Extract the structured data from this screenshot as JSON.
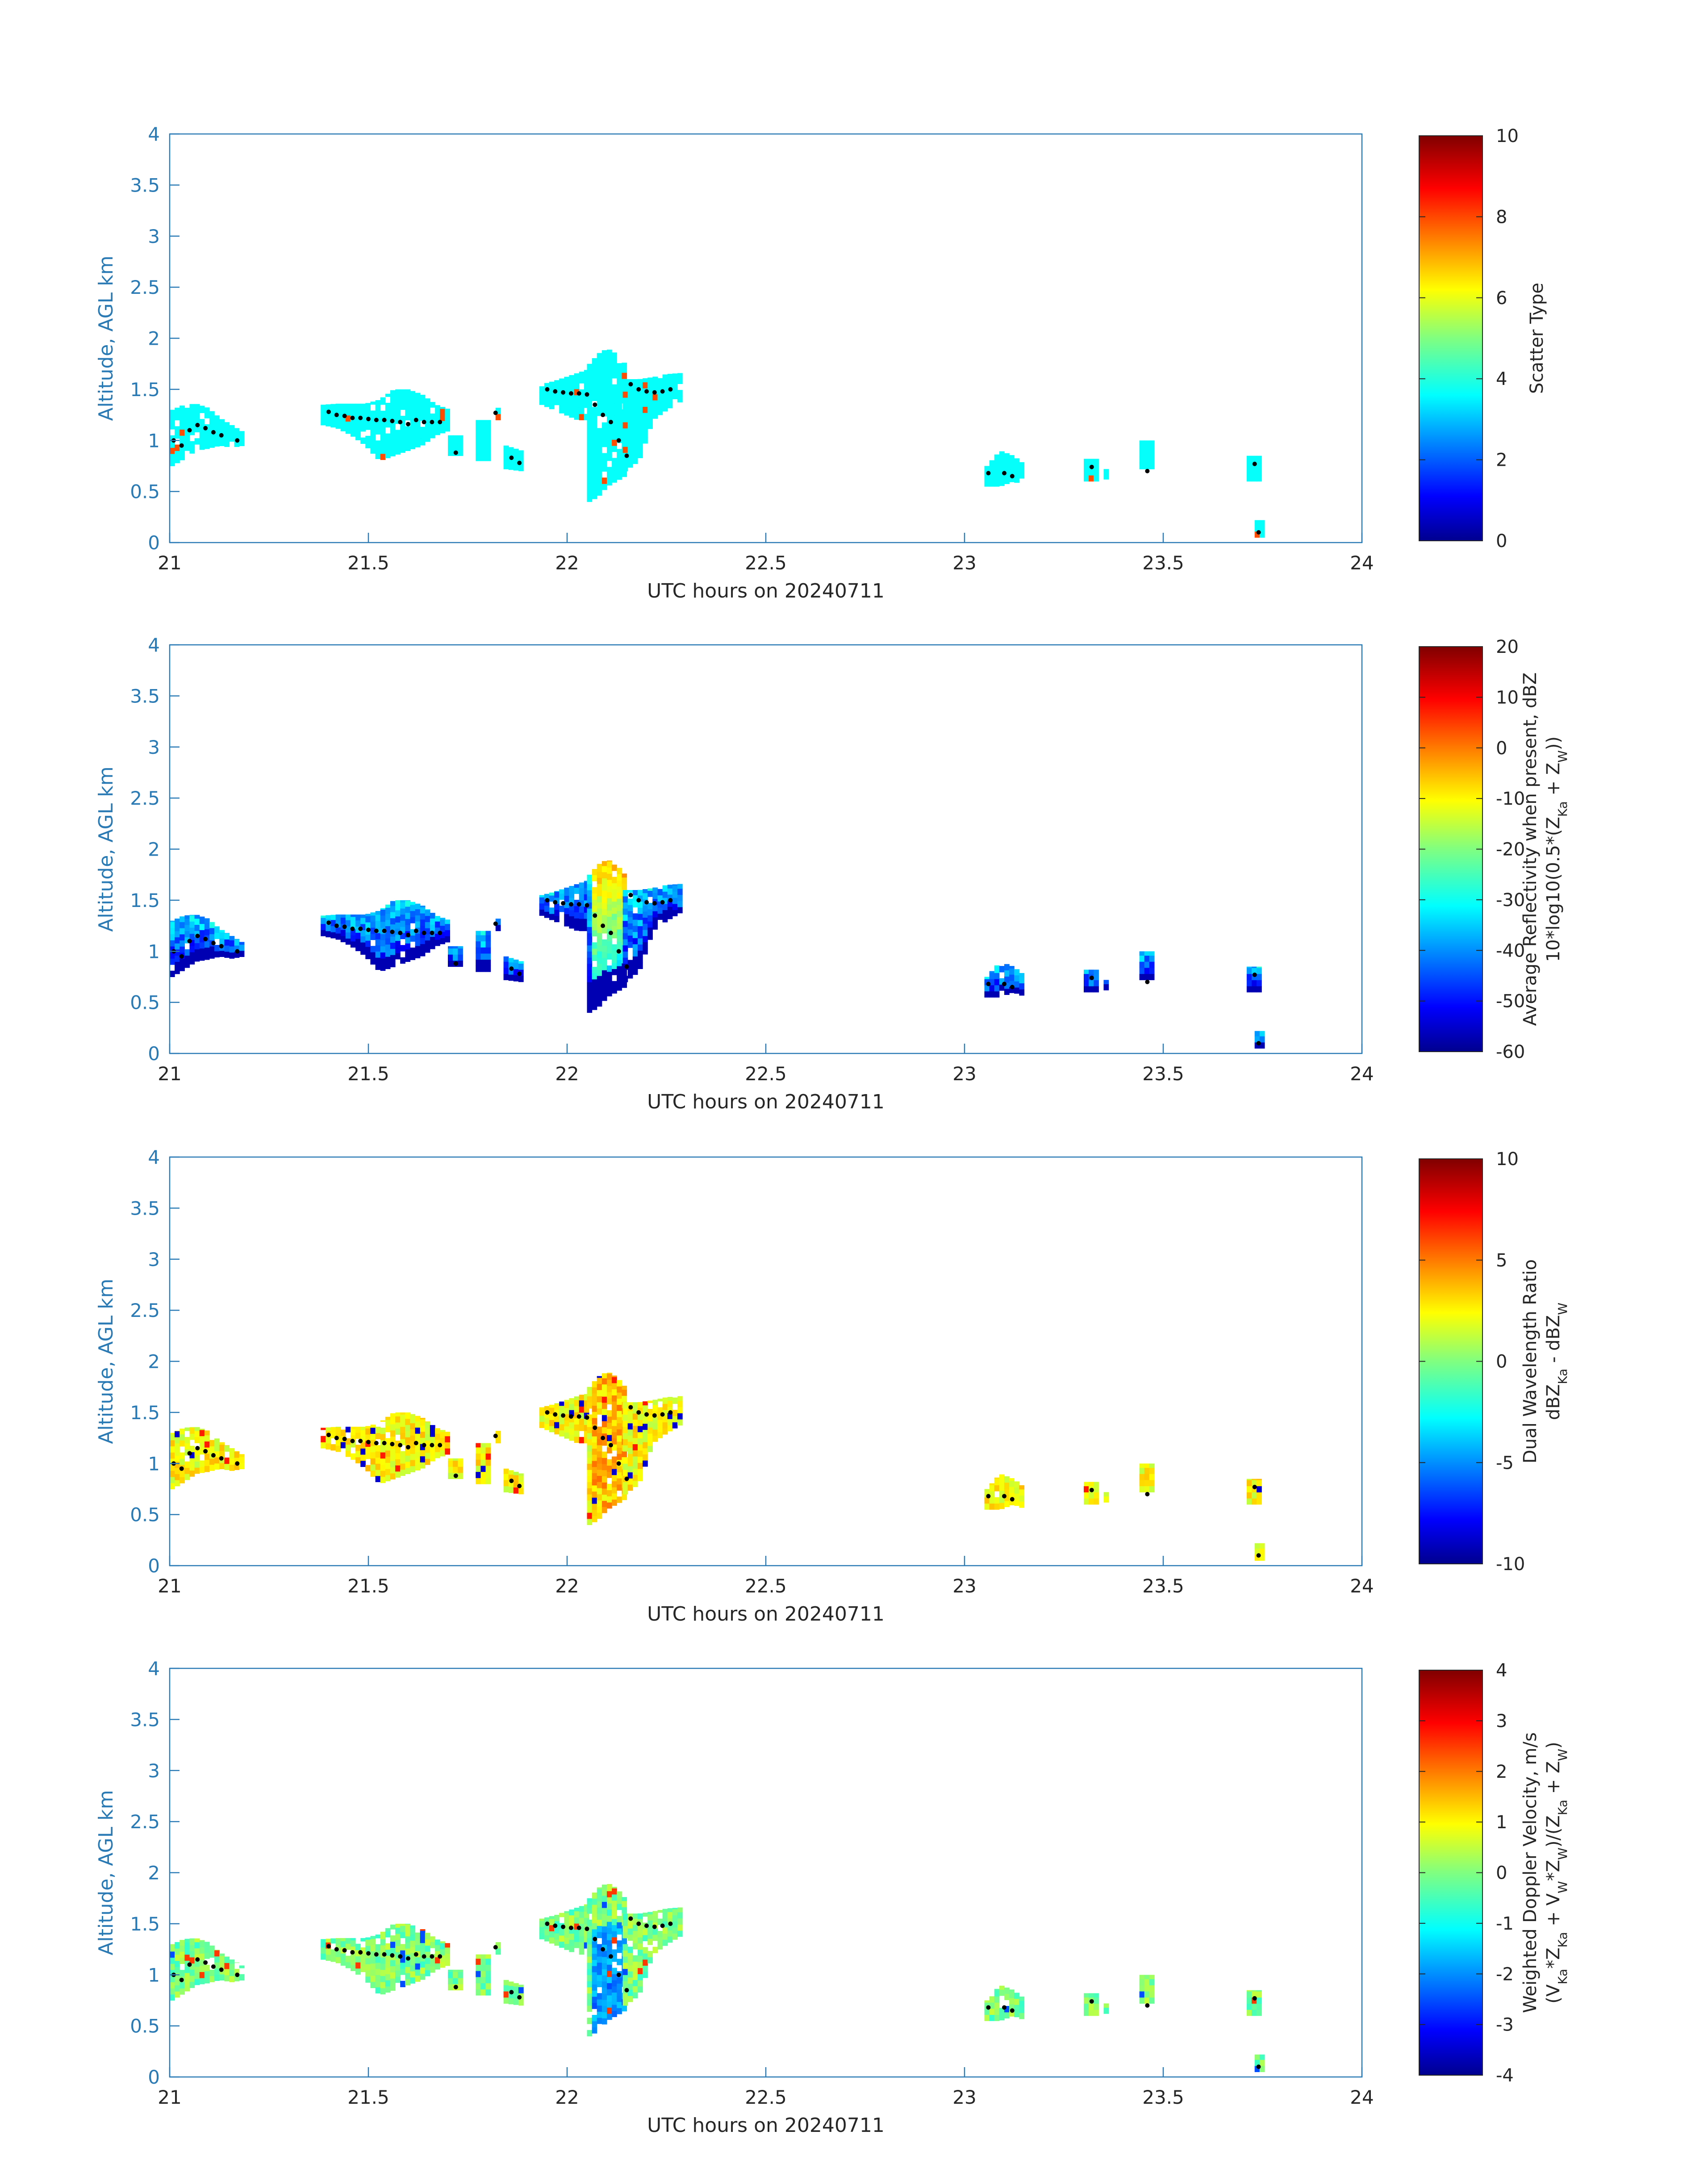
{
  "colors": {
    "axis": "#2a7bb5",
    "text": "#262626",
    "dot": "#000000"
  },
  "chart_data": [
    {
      "type": "heatmap",
      "xlabel": "UTC hours on 20240711",
      "ylabel": "Altitude, AGL km",
      "xlim": [
        21,
        24
      ],
      "ylim": [
        0,
        4
      ],
      "xticks": [
        "21",
        "21.5",
        "22",
        "22.5",
        "23",
        "23.5",
        "24"
      ],
      "yticks": [
        "0",
        "0.5",
        "1",
        "1.5",
        "2",
        "2.5",
        "3",
        "3.5",
        "4"
      ],
      "colorbar": {
        "label": "Scatter Type",
        "label2": "",
        "range": [
          0,
          10
        ],
        "ticks": [
          "0",
          "2",
          "4",
          "6",
          "8",
          "10"
        ]
      },
      "colormap": "jet"
    },
    {
      "type": "heatmap",
      "xlabel": "UTC hours on 20240711",
      "ylabel": "Altitude, AGL km",
      "xlim": [
        21,
        24
      ],
      "ylim": [
        0,
        4
      ],
      "xticks": [
        "21",
        "21.5",
        "22",
        "22.5",
        "23",
        "23.5",
        "24"
      ],
      "yticks": [
        "0",
        "0.5",
        "1",
        "1.5",
        "2",
        "2.5",
        "3",
        "3.5",
        "4"
      ],
      "colorbar": {
        "label": "Average Reflectivity when present, dBZ",
        "label2": "10*log10(0.5*(Z_Ka + Z_W))",
        "range": [
          -60,
          20
        ],
        "ticks": [
          "-60",
          "-50",
          "-40",
          "-30",
          "-20",
          "-10",
          "0",
          "10",
          "20"
        ]
      },
      "colormap": "jet"
    },
    {
      "type": "heatmap",
      "xlabel": "UTC hours on 20240711",
      "ylabel": "Altitude, AGL km",
      "xlim": [
        21,
        24
      ],
      "ylim": [
        0,
        4
      ],
      "xticks": [
        "21",
        "21.5",
        "22",
        "22.5",
        "23",
        "23.5",
        "24"
      ],
      "yticks": [
        "0",
        "0.5",
        "1",
        "1.5",
        "2",
        "2.5",
        "3",
        "3.5",
        "4"
      ],
      "colorbar": {
        "label": "Dual Wavelength Ratio",
        "label2": "dBZ_Ka - dBZ_W",
        "range": [
          -10,
          10
        ],
        "ticks": [
          "-10",
          "-5",
          "0",
          "5",
          "10"
        ]
      },
      "colormap": "jet"
    },
    {
      "type": "heatmap",
      "xlabel": "UTC hours on 20240711",
      "ylabel": "Altitude, AGL km",
      "xlim": [
        21,
        24
      ],
      "ylim": [
        0,
        4
      ],
      "xticks": [
        "21",
        "21.5",
        "22",
        "22.5",
        "23",
        "23.5",
        "24"
      ],
      "yticks": [
        "0",
        "0.5",
        "1",
        "1.5",
        "2",
        "2.5",
        "3",
        "3.5",
        "4"
      ],
      "colorbar": {
        "label": "Weighted Doppler Velocity, m/s",
        "label2": "(V_Ka*Z_Ka + V_W*Z_W)/(Z_Ka + Z_W)",
        "range": [
          -4,
          4
        ],
        "ticks": [
          "-4",
          "-3",
          "-2",
          "-1",
          "0",
          "1",
          "2",
          "3",
          "4"
        ]
      },
      "colormap": "jet"
    }
  ],
  "echo_regions": [
    {
      "x": [
        21.0,
        21.18
      ],
      "ybot": [
        0.75,
        0.82,
        0.9,
        0.92,
        0.95,
        0.93,
        0.95
      ],
      "ytop": [
        1.3,
        1.35,
        1.36,
        1.32,
        1.22,
        1.15,
        1.08
      ]
    },
    {
      "x": [
        21.38,
        21.7
      ],
      "ybot": [
        1.15,
        1.12,
        1.05,
        0.95,
        0.8,
        0.85,
        0.9,
        0.95,
        1.05,
        1.1
      ],
      "ytop": [
        1.35,
        1.36,
        1.36,
        1.36,
        1.4,
        1.5,
        1.5,
        1.45,
        1.35,
        1.3
      ]
    },
    {
      "x": [
        21.7,
        21.73
      ],
      "ybot": [
        0.85,
        0.85
      ],
      "ytop": [
        1.05,
        1.05
      ]
    },
    {
      "x": [
        21.77,
        21.8
      ],
      "ybot": [
        0.8,
        0.8
      ],
      "ytop": [
        1.2,
        1.2
      ]
    },
    {
      "x": [
        21.82,
        21.83
      ],
      "ybot": [
        1.2,
        1.2
      ],
      "ytop": [
        1.32,
        1.32
      ]
    },
    {
      "x": [
        21.84,
        21.88
      ],
      "ybot": [
        0.72,
        0.7
      ],
      "ytop": [
        0.95,
        0.9
      ]
    },
    {
      "x": [
        21.93,
        22.05
      ],
      "ybot": [
        1.35,
        1.3,
        1.25,
        1.2,
        1.2
      ],
      "ytop": [
        1.55,
        1.58,
        1.62,
        1.66,
        1.7
      ]
    },
    {
      "x": [
        22.05,
        22.14
      ],
      "ybot": [
        0.4,
        0.45,
        0.55,
        0.6,
        0.65
      ],
      "ytop": [
        1.75,
        1.85,
        1.9,
        1.85,
        1.75
      ]
    },
    {
      "x": [
        22.14,
        22.28
      ],
      "ybot": [
        0.7,
        0.8,
        1.2,
        1.3,
        1.38
      ],
      "ytop": [
        1.6,
        1.6,
        1.62,
        1.65,
        1.66
      ]
    },
    {
      "x": [
        23.05,
        23.15
      ],
      "ybot": [
        0.55,
        0.55,
        0.6,
        0.55
      ],
      "ytop": [
        0.75,
        0.9,
        0.85,
        0.75
      ]
    },
    {
      "x": [
        23.3,
        23.33
      ],
      "ybot": [
        0.6,
        0.6
      ],
      "ytop": [
        0.82,
        0.82
      ]
    },
    {
      "x": [
        23.35,
        23.36
      ],
      "ybot": [
        0.62,
        0.62
      ],
      "ytop": [
        0.72,
        0.72
      ]
    },
    {
      "x": [
        23.44,
        23.47
      ],
      "ybot": [
        0.72,
        0.72
      ],
      "ytop": [
        1.0,
        1.0
      ]
    },
    {
      "x": [
        23.71,
        23.74
      ],
      "ybot": [
        0.6,
        0.6
      ],
      "ytop": [
        0.85,
        0.85
      ]
    },
    {
      "x": [
        23.73,
        23.75
      ],
      "ybot": [
        0.05,
        0.05
      ],
      "ytop": [
        0.22,
        0.22
      ]
    }
  ],
  "cloud_base_points": [
    [
      21.01,
      1.0
    ],
    [
      21.03,
      0.95
    ],
    [
      21.05,
      1.1
    ],
    [
      21.07,
      1.15
    ],
    [
      21.09,
      1.12
    ],
    [
      21.11,
      1.08
    ],
    [
      21.13,
      1.05
    ],
    [
      21.17,
      1.0
    ],
    [
      21.4,
      1.28
    ],
    [
      21.42,
      1.25
    ],
    [
      21.44,
      1.24
    ],
    [
      21.46,
      1.22
    ],
    [
      21.48,
      1.22
    ],
    [
      21.5,
      1.21
    ],
    [
      21.52,
      1.2
    ],
    [
      21.54,
      1.2
    ],
    [
      21.56,
      1.19
    ],
    [
      21.58,
      1.18
    ],
    [
      21.6,
      1.16
    ],
    [
      21.62,
      1.2
    ],
    [
      21.64,
      1.18
    ],
    [
      21.66,
      1.18
    ],
    [
      21.68,
      1.18
    ],
    [
      21.72,
      0.88
    ],
    [
      21.82,
      1.27
    ],
    [
      21.86,
      0.83
    ],
    [
      21.88,
      0.78
    ],
    [
      21.95,
      1.5
    ],
    [
      21.97,
      1.48
    ],
    [
      21.99,
      1.47
    ],
    [
      22.01,
      1.46
    ],
    [
      22.03,
      1.46
    ],
    [
      22.05,
      1.45
    ],
    [
      22.07,
      1.35
    ],
    [
      22.09,
      1.25
    ],
    [
      22.11,
      1.18
    ],
    [
      22.13,
      1.0
    ],
    [
      22.15,
      0.85
    ],
    [
      22.16,
      1.55
    ],
    [
      22.18,
      1.5
    ],
    [
      22.2,
      1.48
    ],
    [
      22.22,
      1.47
    ],
    [
      22.24,
      1.48
    ],
    [
      22.26,
      1.5
    ],
    [
      23.06,
      0.68
    ],
    [
      23.1,
      0.68
    ],
    [
      23.12,
      0.65
    ],
    [
      23.32,
      0.74
    ],
    [
      23.46,
      0.7
    ],
    [
      23.73,
      0.77
    ],
    [
      23.74,
      0.1
    ]
  ]
}
